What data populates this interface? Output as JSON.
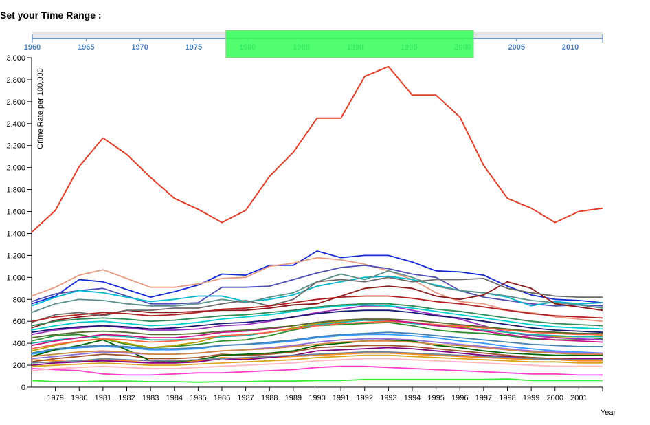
{
  "header": {
    "title": "Set your Time Range :"
  },
  "brush": {
    "years": [
      "1960",
      "1965",
      "1970",
      "1975",
      "1980",
      "1985",
      "1990",
      "1995",
      "2000",
      "2005",
      "2010"
    ],
    "domain": [
      1960,
      2013
    ],
    "selection": [
      1978,
      2001
    ],
    "track_color": "#e6e6e6",
    "axis_color": "#4e7fb6",
    "selection_color": "#33ff55"
  },
  "chart_data": {
    "type": "line",
    "title": "",
    "xlabel": "Year",
    "ylabel": "Crime Rate per 100,000",
    "xlim": [
      1978,
      2002
    ],
    "ylim": [
      0,
      3000
    ],
    "x_ticks": [
      "1979",
      "1980",
      "1981",
      "1982",
      "1983",
      "1984",
      "1985",
      "1986",
      "1987",
      "1988",
      "1989",
      "1990",
      "1991",
      "1992",
      "1993",
      "1994",
      "1995",
      "1996",
      "1997",
      "1998",
      "1999",
      "2000",
      "2001"
    ],
    "y_ticks": [
      "0",
      "200",
      "400",
      "600",
      "800",
      "1,000",
      "1,200",
      "1,400",
      "1,600",
      "1,800",
      "2,000",
      "2,200",
      "2,400",
      "2,600",
      "2,800",
      "3,000"
    ],
    "x": [
      1978,
      1979,
      1980,
      1981,
      1982,
      1983,
      1984,
      1985,
      1986,
      1987,
      1988,
      1989,
      1990,
      1991,
      1992,
      1993,
      1994,
      1995,
      1996,
      1997,
      1998,
      1999,
      2000,
      2001,
      2002
    ],
    "series": [
      {
        "color": "#e0402a",
        "values": [
          1410,
          1610,
          2010,
          2270,
          2120,
          1910,
          1720,
          1620,
          1500,
          1610,
          1920,
          2140,
          2450,
          2450,
          2830,
          2920,
          2660,
          2660,
          2460,
          2020,
          1720,
          1630,
          1500,
          1600,
          1630
        ]
      },
      {
        "color": "#1428d6",
        "values": [
          760,
          830,
          980,
          960,
          890,
          820,
          870,
          930,
          1030,
          1020,
          1110,
          1110,
          1240,
          1180,
          1200,
          1200,
          1140,
          1060,
          1050,
          1020,
          920,
          840,
          800,
          790,
          770
        ]
      },
      {
        "color": "#e89a80",
        "values": [
          830,
          910,
          1020,
          1070,
          990,
          910,
          910,
          940,
          990,
          1000,
          1100,
          1130,
          1180,
          1160,
          1120,
          1060,
          980,
          860,
          780,
          760,
          700,
          680,
          640,
          620,
          600
        ]
      },
      {
        "color": "#4d4db3",
        "values": [
          780,
          850,
          880,
          900,
          830,
          760,
          760,
          770,
          910,
          910,
          920,
          980,
          1040,
          1090,
          1110,
          1080,
          1030,
          1000,
          880,
          820,
          790,
          760,
          740,
          750,
          740
        ]
      },
      {
        "color": "#00b8d0",
        "values": [
          740,
          820,
          880,
          860,
          820,
          780,
          800,
          830,
          830,
          780,
          800,
          840,
          920,
          960,
          1000,
          1010,
          980,
          930,
          880,
          860,
          820,
          740,
          780,
          760,
          770
        ]
      },
      {
        "color": "#5a8f8a",
        "values": [
          680,
          760,
          800,
          790,
          760,
          740,
          740,
          760,
          800,
          770,
          820,
          860,
          960,
          1030,
          980,
          1060,
          1000,
          920,
          880,
          860,
          830,
          790,
          770,
          750,
          720
        ]
      },
      {
        "color": "#8b1a1a",
        "values": [
          540,
          610,
          640,
          660,
          700,
          680,
          680,
          690,
          700,
          700,
          720,
          750,
          760,
          830,
          900,
          920,
          900,
          830,
          800,
          840,
          960,
          900,
          760,
          730,
          700
        ]
      },
      {
        "color": "#6a6a6a",
        "values": [
          590,
          660,
          680,
          650,
          700,
          700,
          720,
          720,
          760,
          790,
          740,
          800,
          960,
          980,
          960,
          1000,
          960,
          980,
          980,
          990,
          900,
          860,
          830,
          820,
          820
        ]
      },
      {
        "color": "#2f8f2f",
        "values": [
          420,
          470,
          480,
          440,
          390,
          360,
          370,
          390,
          420,
          430,
          470,
          520,
          560,
          570,
          580,
          590,
          560,
          520,
          500,
          490,
          470,
          440,
          430,
          430,
          440
        ]
      },
      {
        "color": "#b8a000",
        "values": [
          330,
          380,
          420,
          440,
          400,
          360,
          380,
          410,
          470,
          470,
          500,
          540,
          580,
          600,
          610,
          600,
          590,
          570,
          550,
          520,
          500,
          470,
          460,
          460,
          470
        ]
      },
      {
        "color": "#9a2fc0",
        "values": [
          480,
          520,
          540,
          560,
          540,
          520,
          520,
          530,
          560,
          570,
          600,
          640,
          680,
          710,
          740,
          740,
          700,
          660,
          620,
          560,
          500,
          470,
          450,
          440,
          430
        ]
      },
      {
        "color": "#3399ff",
        "values": [
          300,
          340,
          360,
          370,
          360,
          340,
          340,
          350,
          380,
          390,
          400,
          420,
          450,
          470,
          480,
          480,
          470,
          450,
          420,
          400,
          370,
          350,
          330,
          320,
          310
        ]
      },
      {
        "color": "#ff3ccd",
        "values": [
          170,
          160,
          150,
          120,
          110,
          110,
          120,
          130,
          130,
          140,
          150,
          160,
          180,
          190,
          190,
          180,
          170,
          160,
          150,
          140,
          130,
          120,
          120,
          110,
          110
        ]
      },
      {
        "color": "#33ee33",
        "values": [
          60,
          50,
          50,
          55,
          55,
          50,
          50,
          45,
          50,
          50,
          55,
          55,
          60,
          60,
          70,
          70,
          70,
          70,
          70,
          70,
          75,
          60,
          60,
          60,
          60
        ]
      },
      {
        "color": "#ff8c1a",
        "values": [
          250,
          240,
          230,
          250,
          240,
          220,
          230,
          240,
          270,
          260,
          270,
          280,
          290,
          300,
          310,
          310,
          300,
          290,
          280,
          270,
          260,
          250,
          250,
          240,
          240
        ]
      },
      {
        "color": "#800080",
        "values": [
          200,
          220,
          230,
          240,
          230,
          220,
          220,
          230,
          260,
          250,
          270,
          290,
          330,
          340,
          350,
          360,
          350,
          330,
          310,
          290,
          280,
          270,
          260,
          260,
          260
        ]
      },
      {
        "color": "#a0522d",
        "values": [
          230,
          260,
          280,
          300,
          290,
          260,
          260,
          270,
          300,
          290,
          300,
          320,
          360,
          370,
          380,
          380,
          370,
          350,
          330,
          310,
          290,
          270,
          260,
          250,
          250
        ]
      },
      {
        "color": "#20b2aa",
        "values": [
          400,
          430,
          450,
          470,
          460,
          430,
          430,
          440,
          460,
          470,
          500,
          530,
          570,
          590,
          610,
          600,
          580,
          560,
          540,
          520,
          500,
          480,
          470,
          460,
          460
        ]
      },
      {
        "color": "#006400",
        "values": [
          280,
          340,
          380,
          430,
          340,
          240,
          230,
          250,
          290,
          300,
          310,
          330,
          380,
          400,
          420,
          430,
          420,
          380,
          360,
          330,
          310,
          300,
          290,
          290,
          290
        ]
      },
      {
        "color": "#ff6347",
        "values": [
          350,
          390,
          420,
          440,
          430,
          410,
          420,
          440,
          470,
          480,
          500,
          530,
          560,
          580,
          590,
          600,
          590,
          570,
          560,
          540,
          520,
          500,
          490,
          480,
          480
        ]
      },
      {
        "color": "#4682b4",
        "values": [
          310,
          350,
          370,
          380,
          370,
          350,
          350,
          360,
          380,
          390,
          410,
          430,
          460,
          480,
          490,
          500,
          490,
          470,
          450,
          430,
          410,
          390,
          380,
          370,
          370
        ]
      },
      {
        "color": "#daa520",
        "values": [
          190,
          200,
          210,
          220,
          210,
          200,
          200,
          210,
          220,
          230,
          240,
          250,
          270,
          280,
          290,
          290,
          280,
          270,
          260,
          250,
          240,
          230,
          230,
          220,
          220
        ]
      },
      {
        "color": "#708090",
        "values": [
          220,
          230,
          240,
          260,
          250,
          240,
          240,
          250,
          260,
          270,
          280,
          290,
          300,
          310,
          320,
          320,
          310,
          300,
          290,
          280,
          270,
          260,
          250,
          250,
          250
        ]
      },
      {
        "color": "#c71585",
        "values": [
          380,
          420,
          450,
          480,
          470,
          450,
          450,
          470,
          500,
          510,
          530,
          560,
          590,
          610,
          620,
          610,
          590,
          560,
          540,
          510,
          480,
          450,
          430,
          420,
          410
        ]
      },
      {
        "color": "#00ced1",
        "values": [
          520,
          560,
          590,
          600,
          580,
          560,
          570,
          590,
          620,
          640,
          660,
          690,
          720,
          740,
          750,
          740,
          720,
          690,
          660,
          630,
          600,
          570,
          550,
          540,
          530
        ]
      },
      {
        "color": "#556b2f",
        "values": [
          450,
          480,
          500,
          510,
          500,
          480,
          480,
          490,
          510,
          520,
          540,
          560,
          590,
          610,
          620,
          620,
          610,
          590,
          570,
          550,
          530,
          510,
          500,
          490,
          490
        ]
      },
      {
        "color": "#9370db",
        "values": [
          260,
          280,
          300,
          320,
          310,
          300,
          300,
          310,
          330,
          340,
          360,
          380,
          410,
          430,
          440,
          440,
          430,
          410,
          390,
          370,
          350,
          330,
          320,
          310,
          310
        ]
      },
      {
        "color": "#b22222",
        "values": [
          600,
          640,
          660,
          680,
          670,
          650,
          660,
          680,
          710,
          720,
          740,
          770,
          800,
          820,
          830,
          830,
          810,
          780,
          760,
          730,
          700,
          670,
          650,
          640,
          630
        ]
      },
      {
        "color": "#2e8b57",
        "values": [
          560,
          600,
          620,
          630,
          620,
          600,
          610,
          630,
          650,
          660,
          680,
          700,
          730,
          750,
          760,
          760,
          740,
          710,
          690,
          660,
          630,
          600,
          580,
          570,
          560
        ]
      },
      {
        "color": "#ffb6c1",
        "values": [
          150,
          170,
          180,
          190,
          180,
          170,
          170,
          180,
          190,
          200,
          210,
          220,
          240,
          250,
          260,
          260,
          250,
          240,
          230,
          220,
          210,
          200,
          190,
          190,
          190
        ]
      },
      {
        "color": "#191970",
        "values": [
          500,
          530,
          550,
          560,
          550,
          530,
          540,
          560,
          580,
          590,
          610,
          640,
          670,
          690,
          700,
          700,
          680,
          650,
          630,
          600,
          570,
          540,
          520,
          510,
          500
        ]
      },
      {
        "color": "#cd853f",
        "values": [
          280,
          300,
          320,
          330,
          320,
          300,
          300,
          310,
          330,
          340,
          350,
          370,
          390,
          410,
          420,
          420,
          410,
          390,
          380,
          360,
          340,
          320,
          310,
          300,
          300
        ]
      }
    ]
  }
}
